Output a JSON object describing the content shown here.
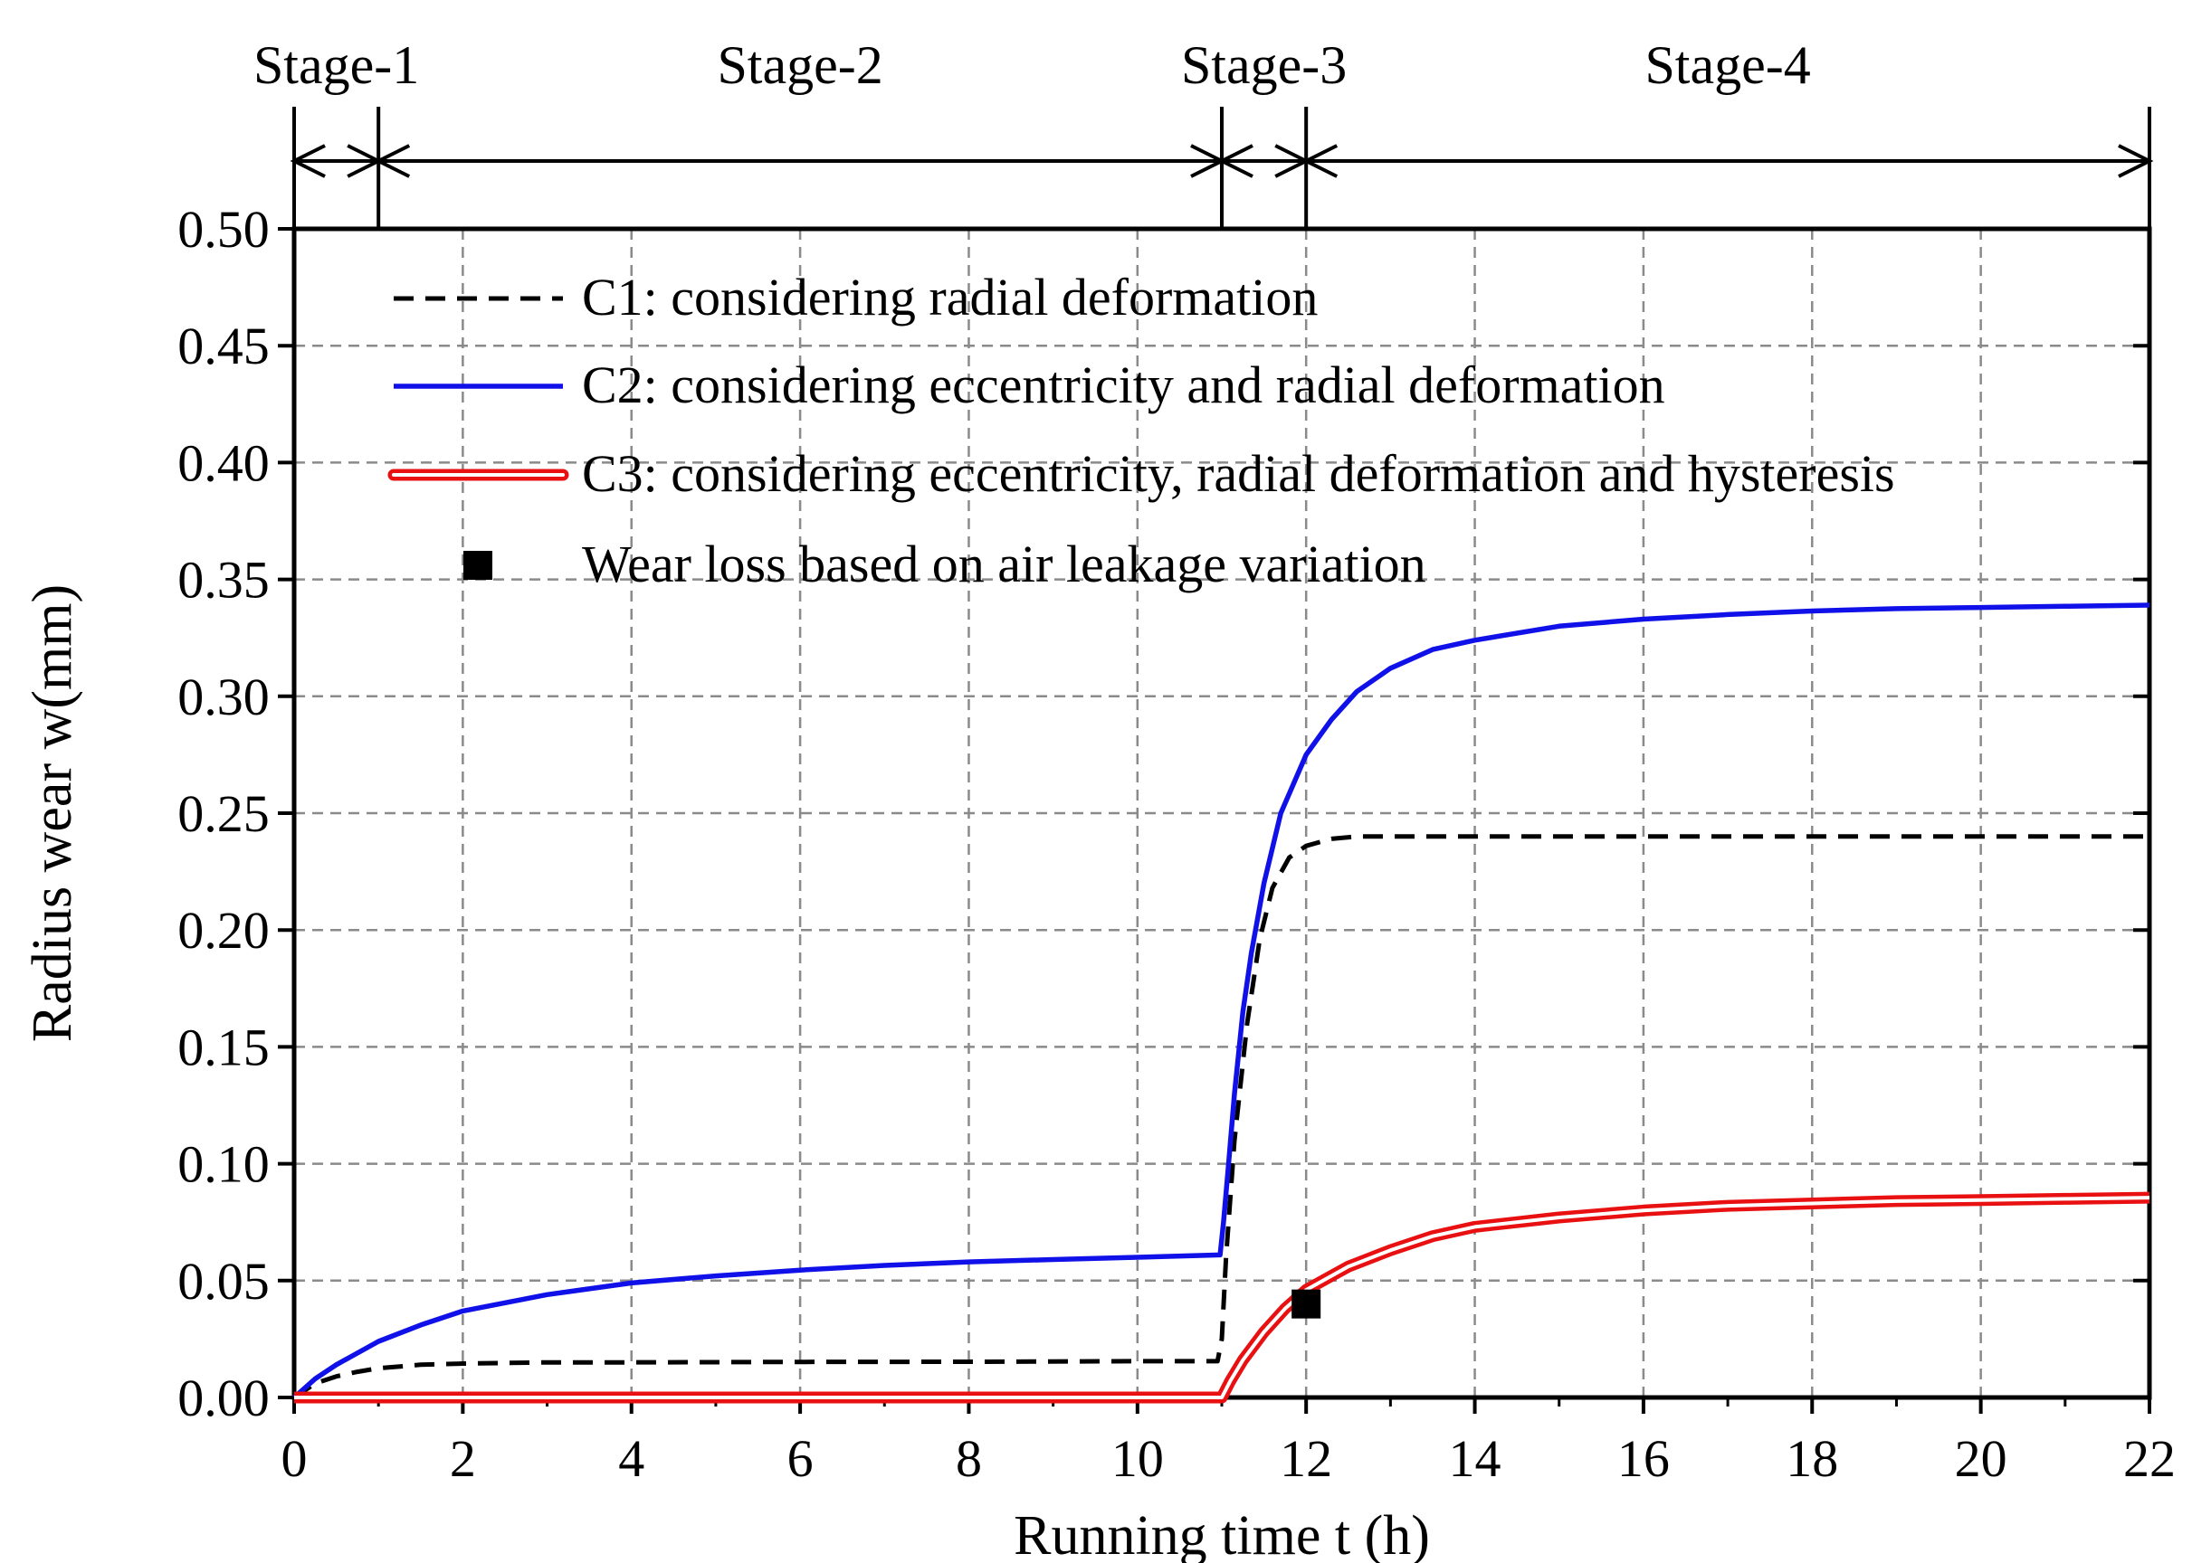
{
  "chart_data": {
    "type": "line",
    "title": "",
    "xlabel": "Running time t (h)",
    "ylabel": "Radius wear w(mm)",
    "xlim": [
      0,
      22
    ],
    "ylim": [
      0,
      0.5
    ],
    "xticks": [
      0,
      2,
      4,
      6,
      8,
      10,
      12,
      14,
      16,
      18,
      20,
      22
    ],
    "yticks": [
      0.0,
      0.05,
      0.1,
      0.15,
      0.2,
      0.25,
      0.3,
      0.35,
      0.4,
      0.45,
      0.5
    ],
    "ytick_labels": [
      "0.00",
      "0.05",
      "0.10",
      "0.15",
      "0.20",
      "0.25",
      "0.30",
      "0.35",
      "0.40",
      "0.45",
      "0.50"
    ],
    "xtick_labels": [
      "0",
      "2",
      "4",
      "6",
      "8",
      "10",
      "12",
      "14",
      "16",
      "18",
      "20",
      "22"
    ],
    "grid": true,
    "legend_position": "top-left",
    "stages": [
      {
        "label": "Stage-1",
        "start": 0,
        "end": 1
      },
      {
        "label": "Stage-2",
        "start": 1,
        "end": 11
      },
      {
        "label": "Stage-3",
        "start": 11,
        "end": 12
      },
      {
        "label": "Stage-4",
        "start": 12,
        "end": 22
      }
    ],
    "series": [
      {
        "name": "C1: considering radial deformation",
        "style": "dashed",
        "color": "#000000",
        "x": [
          0,
          0.25,
          0.5,
          0.75,
          1,
          1.5,
          2,
          3,
          4,
          6,
          8,
          10,
          10.95,
          11.0,
          11.05,
          11.15,
          11.3,
          11.45,
          11.6,
          11.8,
          12.0,
          12.3,
          12.6,
          13,
          14,
          16,
          18,
          20,
          22
        ],
        "values": [
          0.0,
          0.006,
          0.009,
          0.011,
          0.0125,
          0.014,
          0.0145,
          0.015,
          0.015,
          0.0152,
          0.0153,
          0.0155,
          0.0155,
          0.025,
          0.06,
          0.11,
          0.16,
          0.196,
          0.218,
          0.231,
          0.236,
          0.239,
          0.24,
          0.24,
          0.24,
          0.24,
          0.24,
          0.24,
          0.24
        ]
      },
      {
        "name": "C2: considering eccentricity and radial deformation",
        "style": "solid",
        "color": "#1010e8",
        "x": [
          0,
          0.25,
          0.5,
          1,
          1.5,
          2,
          3,
          4,
          5,
          6,
          7,
          8,
          9,
          10,
          10.98,
          11.02,
          11.08,
          11.15,
          11.25,
          11.35,
          11.5,
          11.7,
          12.0,
          12.3,
          12.6,
          13,
          13.5,
          14,
          15,
          16,
          17,
          18,
          19,
          20,
          21,
          22
        ],
        "values": [
          0.0,
          0.008,
          0.014,
          0.024,
          0.031,
          0.037,
          0.044,
          0.049,
          0.052,
          0.0545,
          0.0565,
          0.058,
          0.059,
          0.06,
          0.061,
          0.075,
          0.1,
          0.13,
          0.165,
          0.19,
          0.22,
          0.25,
          0.275,
          0.29,
          0.302,
          0.312,
          0.32,
          0.324,
          0.33,
          0.333,
          0.335,
          0.3365,
          0.3375,
          0.338,
          0.3385,
          0.339
        ]
      },
      {
        "name": "C3: considering eccentricity, radial deformation and hysteresis",
        "style": "double",
        "color": "#e81010",
        "x": [
          0,
          2,
          4,
          6,
          8,
          10,
          11,
          11.1,
          11.25,
          11.5,
          11.75,
          12,
          12.5,
          13,
          13.5,
          14,
          15,
          16,
          17,
          18,
          19,
          20,
          21,
          22
        ],
        "values": [
          0.0,
          0.0,
          0.0,
          0.0,
          0.0,
          0.0,
          0.0,
          0.007,
          0.016,
          0.028,
          0.038,
          0.046,
          0.056,
          0.063,
          0.069,
          0.073,
          0.077,
          0.08,
          0.082,
          0.083,
          0.084,
          0.0845,
          0.085,
          0.0855
        ]
      }
    ],
    "markers": [
      {
        "name": "Wear loss based on air leakage variation",
        "x": 12,
        "y": 0.04,
        "shape": "square",
        "color": "#000000"
      }
    ]
  }
}
